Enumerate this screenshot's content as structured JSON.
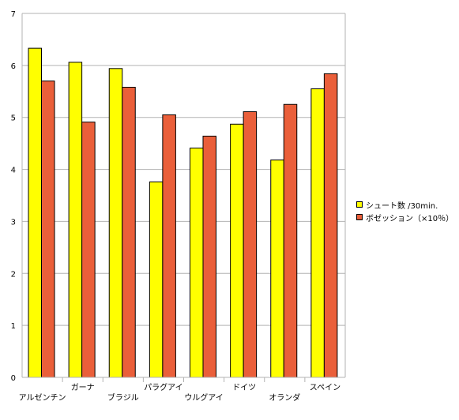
{
  "chart_data": {
    "type": "bar",
    "categories": [
      "アルゼンチン",
      "ガーナ",
      "ブラジル",
      "パラグアイ",
      "ウルグアイ",
      "ドイツ",
      "オランダ",
      "スペイン"
    ],
    "series": [
      {
        "name": "シュート数 /30min.",
        "color": "#ffff00",
        "values": [
          6.33,
          6.06,
          5.94,
          3.76,
          4.41,
          4.87,
          4.18,
          5.55
        ]
      },
      {
        "name": "ボゼッション（×10％）",
        "color": "#ea5f3a",
        "values": [
          5.7,
          4.91,
          5.58,
          5.05,
          4.64,
          5.11,
          5.25,
          5.84
        ]
      }
    ],
    "y_ticks": [
      "0",
      "1",
      "2",
      "3",
      "4",
      "5",
      "6",
      "7"
    ],
    "ylim": [
      0,
      7
    ],
    "grid": true,
    "legend_position": "right"
  }
}
